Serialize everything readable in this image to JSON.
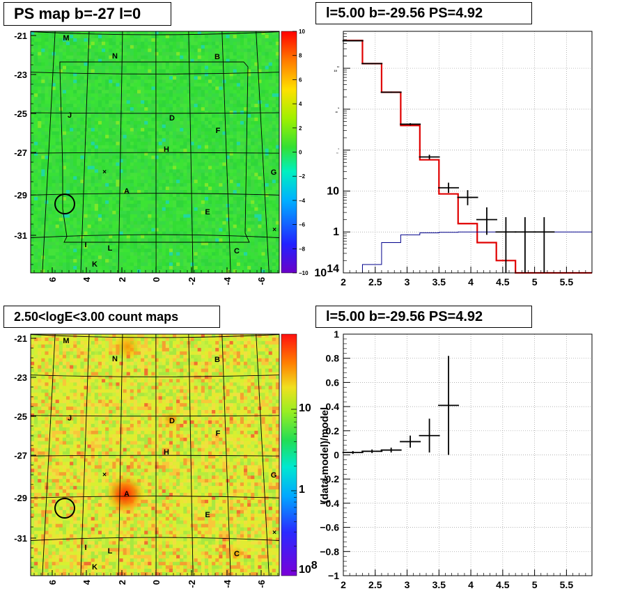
{
  "chart_data": [
    {
      "type": "heatmap",
      "title": "PS map b=-27 l=0",
      "xticks": [
        "6",
        "4",
        "2",
        "0",
        "-2",
        "-4",
        "-6"
      ],
      "yticks": [
        "-21",
        "-23",
        "-25",
        "-27",
        "-29",
        "-31"
      ],
      "colorbar": {
        "min": -10,
        "max": 10,
        "ticks": [
          "10",
          "8",
          "6",
          "4",
          "2",
          "0",
          "−2",
          "−4",
          "−6",
          "−8",
          "−10"
        ]
      },
      "source_labels": [
        "M",
        "N",
        "B",
        "J",
        "D",
        "F",
        "H",
        "G",
        "A",
        "E",
        "I",
        "L",
        "C",
        "K"
      ]
    },
    {
      "type": "line",
      "title": "l=5.00 b=-29.56 PS=4.92",
      "xlim": [
        2,
        5.9
      ],
      "ylim": [
        0.1,
        80000
      ],
      "yscale": "log",
      "xticks": [
        "2",
        "2.5",
        "3",
        "3.5",
        "4",
        "4.5",
        "5",
        "5.5"
      ],
      "yticks": [
        {
          "v": 0.1,
          "t": "10",
          "sup": "-1"
        },
        {
          "v": 1,
          "t": "1",
          "sup": ""
        },
        {
          "v": 10,
          "t": "10",
          "sup": ""
        },
        {
          "v": 100,
          "t": "10",
          "sup": "2"
        },
        {
          "v": 1000,
          "t": "10",
          "sup": "3"
        },
        {
          "v": 10000,
          "t": "10",
          "sup": "4"
        }
      ],
      "bin_edges": [
        2.0,
        2.3,
        2.6,
        2.9,
        3.2,
        3.5,
        3.8,
        4.1,
        4.4,
        4.7,
        5.0,
        5.3,
        5.6,
        5.9
      ],
      "series": [
        {
          "color": "#e00000",
          "values": [
            48000,
            13000,
            2600,
            400,
            58,
            8.5,
            1.6,
            0.55,
            0.2,
            0.09,
            0.1,
            0.1,
            0.1
          ]
        },
        {
          "color": "#00008b",
          "values": [
            0.09,
            0.16,
            0.55,
            0.85,
            0.95,
            0.98,
            1.0,
            1.0,
            1.0,
            1.0,
            1.0,
            1.0,
            1.0
          ]
        }
      ],
      "data_points": [
        {
          "x": 2.15,
          "y": 47000,
          "ylo": 46000,
          "yhi": 48000
        },
        {
          "x": 2.45,
          "y": 13000,
          "ylo": 12600,
          "yhi": 13400
        },
        {
          "x": 2.75,
          "y": 2600,
          "ylo": 2500,
          "yhi": 2700
        },
        {
          "x": 3.05,
          "y": 430,
          "ylo": 405,
          "yhi": 455
        },
        {
          "x": 3.35,
          "y": 68,
          "ylo": 60,
          "yhi": 77
        },
        {
          "x": 3.65,
          "y": 12,
          "ylo": 9,
          "yhi": 16
        },
        {
          "x": 3.95,
          "y": 7,
          "ylo": 4.5,
          "yhi": 10.5
        },
        {
          "x": 4.25,
          "y": 2,
          "ylo": 0.85,
          "yhi": 4
        },
        {
          "x": 4.55,
          "y": 1,
          "ylo": 0.1,
          "yhi": 2.3
        },
        {
          "x": 4.85,
          "y": 1,
          "ylo": 0.1,
          "yhi": 2.3
        },
        {
          "x": 5.15,
          "y": 1,
          "ylo": 0.1,
          "yhi": 2.3
        }
      ]
    },
    {
      "type": "heatmap",
      "title": "2.50<logE<3.00 count maps",
      "xticks": [
        "6",
        "4",
        "2",
        "0",
        "-2",
        "-4",
        "-6"
      ],
      "yticks": [
        "-21",
        "-23",
        "-25",
        "-27",
        "-29",
        "-31"
      ],
      "colorbar": {
        "scale": "log",
        "ticks": [
          {
            "t": "10",
            "sup": ""
          },
          {
            "t": "1",
            "sup": ""
          },
          {
            "t": "10",
            "sup": "-1"
          }
        ]
      },
      "source_labels": [
        "M",
        "N",
        "B",
        "J",
        "D",
        "F",
        "H",
        "G",
        "A",
        "E",
        "I",
        "L",
        "C",
        "K"
      ]
    },
    {
      "type": "scatter",
      "title": "l=5.00 b=-29.56 PS=4.92",
      "ylabel": "(data-model)/model",
      "xlim": [
        2,
        5.9
      ],
      "ylim": [
        -1,
        1
      ],
      "xticks": [
        "2",
        "2.5",
        "3",
        "3.5",
        "4",
        "4.5",
        "5",
        "5.5"
      ],
      "yticks": [
        "1",
        "0.8",
        "0.6",
        "0.4",
        "0.2",
        "0",
        "−0.2",
        "−0.4",
        "−0.6",
        "−0.8",
        "−1"
      ],
      "data_points": [
        {
          "x": 2.15,
          "y": 0.02,
          "err": 0.012
        },
        {
          "x": 2.45,
          "y": 0.03,
          "err": 0.015
        },
        {
          "x": 2.75,
          "y": 0.04,
          "err": 0.02
        },
        {
          "x": 3.05,
          "y": 0.11,
          "err": 0.05
        },
        {
          "x": 3.35,
          "y": 0.16,
          "err": 0.14
        },
        {
          "x": 3.65,
          "y": 0.41,
          "err": 0.41
        }
      ]
    }
  ]
}
